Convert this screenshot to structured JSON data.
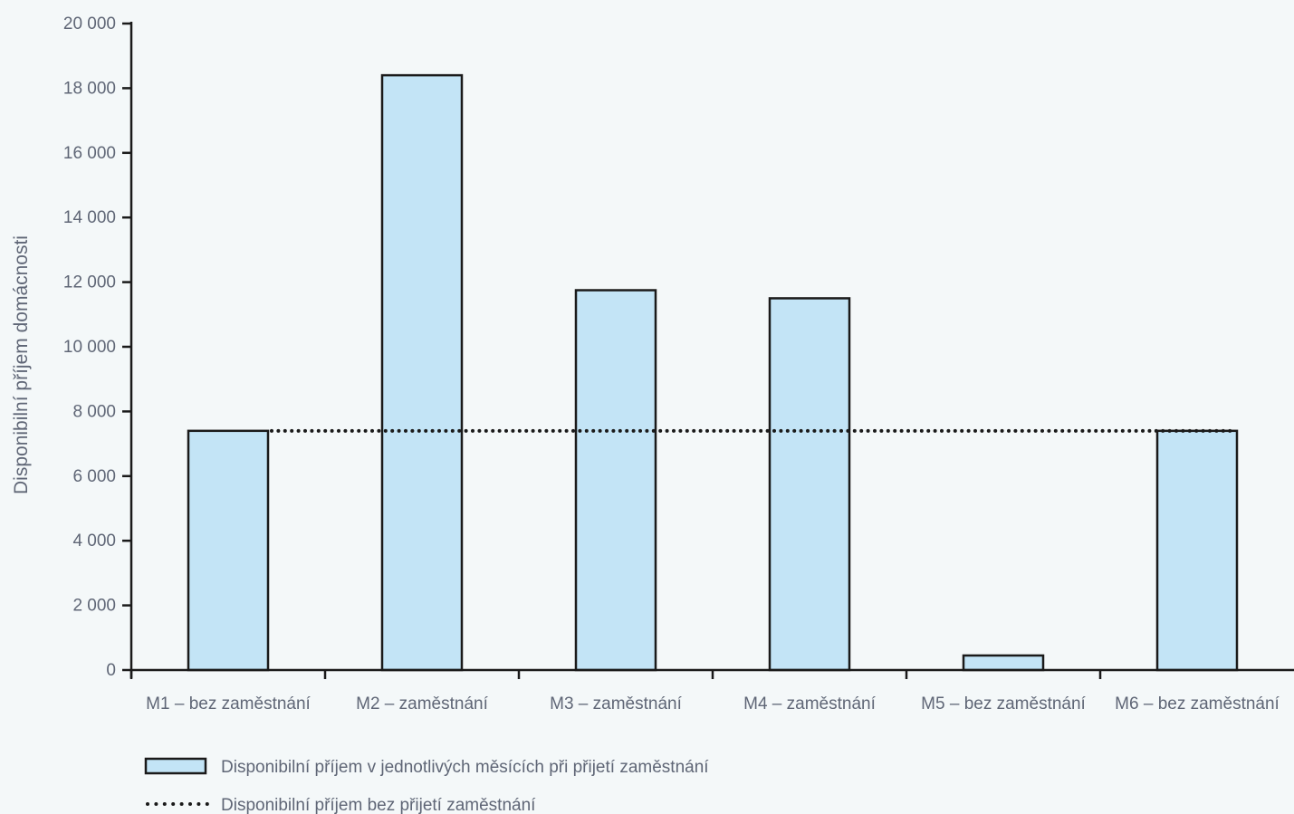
{
  "chart_data": {
    "type": "bar",
    "categories": [
      "M1 – bez zaměstnání",
      "M2 – zaměstnání",
      "M3 – zaměstnání",
      "M4 – zaměstnání",
      "M5 – bez zaměstnání",
      "M6 – bez zaměstnání"
    ],
    "series": [
      {
        "name": "Disponibilní příjem v jednotlivých měsících při přijetí zaměstnání",
        "type": "bar",
        "values": [
          7400,
          18400,
          11750,
          11500,
          450,
          7400
        ],
        "color": "#c3e4f6",
        "stroke": "#1a1a1a"
      },
      {
        "name": "Disponibilní příjem bez přijetí zaměstnání",
        "type": "line",
        "style": "dotted",
        "values": [
          7400,
          7400,
          7400,
          7400,
          7400,
          7400
        ],
        "color": "#1a1a1a"
      }
    ],
    "title": "",
    "xlabel": "",
    "ylabel": "Disponibilní příjem domácnosti",
    "ylim": [
      0,
      20000
    ],
    "yticks": [
      0,
      2000,
      4000,
      6000,
      8000,
      10000,
      12000,
      14000,
      16000,
      18000,
      20000
    ],
    "ytick_labels": [
      "0",
      "2 000",
      "4 000",
      "6 000",
      "8 000",
      "10 000",
      "12 000",
      "14 000",
      "16 000",
      "18 000",
      "20 000"
    ],
    "grid": false,
    "legend_position": "bottom-left"
  }
}
